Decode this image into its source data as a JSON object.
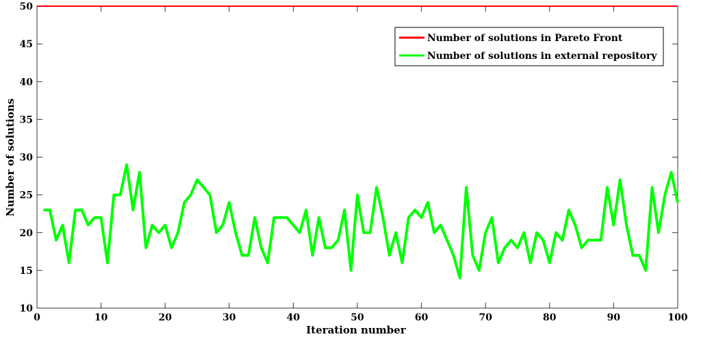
{
  "chart_data": {
    "type": "line",
    "title": "",
    "xlabel": "Iteration number",
    "ylabel": "Number of solutions",
    "xlim": [
      0,
      100
    ],
    "ylim": [
      10,
      50
    ],
    "xticks": [
      0,
      10,
      20,
      30,
      40,
      50,
      60,
      70,
      80,
      90,
      100
    ],
    "yticks": [
      10,
      15,
      20,
      25,
      30,
      35,
      40,
      45,
      50
    ],
    "grid": false,
    "legend_position": "top-right",
    "series": [
      {
        "name": "Number of solutions in Pareto Front",
        "color": "#ff0000",
        "x": [
          0,
          100
        ],
        "values": [
          50,
          50
        ]
      },
      {
        "name": "Number of solutions in external repository",
        "color": "#00ff00",
        "x": [
          1,
          2,
          3,
          4,
          5,
          6,
          7,
          8,
          9,
          10,
          11,
          12,
          13,
          14,
          15,
          16,
          17,
          18,
          19,
          20,
          21,
          22,
          23,
          24,
          25,
          26,
          27,
          28,
          29,
          30,
          31,
          32,
          33,
          34,
          35,
          36,
          37,
          38,
          39,
          40,
          41,
          42,
          43,
          44,
          45,
          46,
          47,
          48,
          49,
          50,
          51,
          52,
          53,
          54,
          55,
          56,
          57,
          58,
          59,
          60,
          61,
          62,
          63,
          64,
          65,
          66,
          67,
          68,
          69,
          70,
          71,
          72,
          73,
          74,
          75,
          76,
          77,
          78,
          79,
          80,
          81,
          82,
          83,
          84,
          85,
          86,
          87,
          88,
          89,
          90,
          91,
          92,
          93,
          94,
          95,
          96,
          97,
          98,
          99,
          100
        ],
        "values": [
          23,
          23,
          19,
          21,
          16,
          23,
          23,
          21,
          22,
          22,
          16,
          25,
          25,
          29,
          23,
          28,
          18,
          21,
          20,
          21,
          18,
          20,
          24,
          25,
          27,
          26,
          25,
          20,
          21,
          24,
          20,
          17,
          17,
          22,
          18,
          16,
          22,
          22,
          22,
          21,
          20,
          23,
          17,
          22,
          18,
          18,
          19,
          23,
          15,
          25,
          20,
          20,
          26,
          22,
          17,
          20,
          16,
          22,
          23,
          22,
          24,
          20,
          21,
          19,
          17,
          14,
          26,
          17,
          15,
          20,
          22,
          16,
          18,
          19,
          18,
          20,
          16,
          20,
          19,
          16,
          20,
          19,
          23,
          21,
          18,
          19,
          19,
          19,
          26,
          21,
          27,
          21,
          17,
          17,
          15,
          26,
          20,
          25,
          28,
          24
        ]
      }
    ]
  }
}
